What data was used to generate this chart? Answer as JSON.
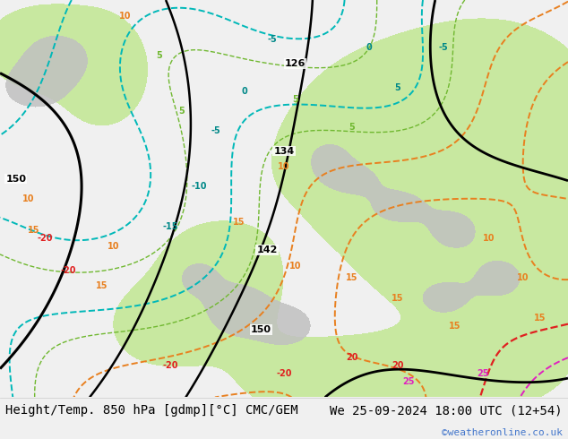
{
  "title_left": "Height/Temp. 850 hPa [gdmp][°C] CMC/GEM",
  "title_right": "We 25-09-2024 18:00 UTC (12+54)",
  "watermark": "©weatheronline.co.uk",
  "bottom_bar_color": "#f0f0f0",
  "title_fontsize": 10,
  "watermark_color": "#4477cc",
  "map_ocean_color": "#f0f0f0",
  "map_land_green": "#c8e8a0",
  "map_land_gray": "#c0c0c0"
}
